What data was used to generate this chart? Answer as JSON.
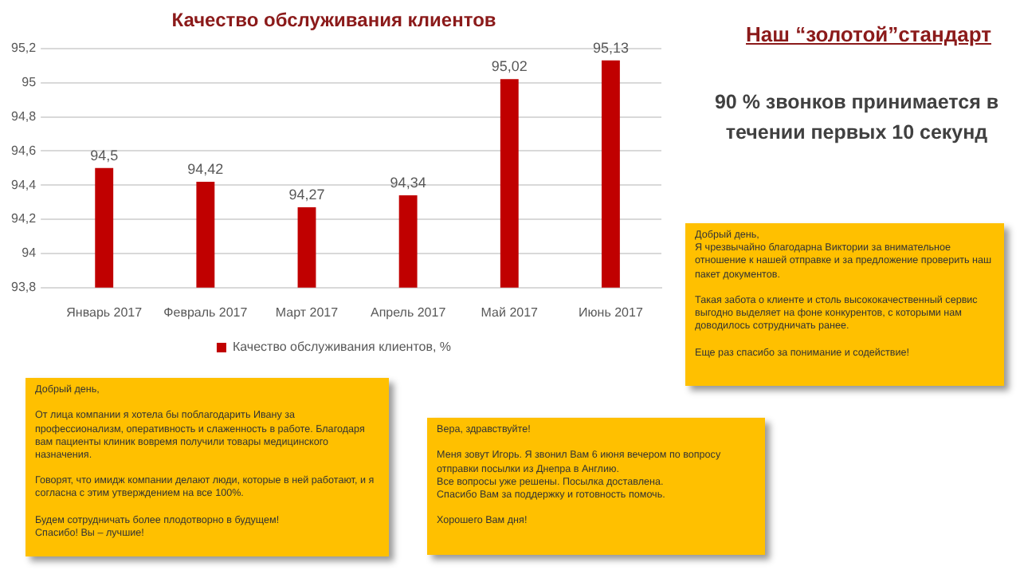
{
  "chart_data": [
    {
      "type": "bar",
      "title": "Качество обслуживания клиентов",
      "categories": [
        "Январь 2017",
        "Февраль 2017",
        "Март 2017",
        "Апрель 2017",
        "Май 2017",
        "Июнь 2017"
      ],
      "series": [
        {
          "name": "Качество обслуживания клиентов, %",
          "color": "#c00000",
          "values": [
            94.5,
            94.42,
            94.27,
            94.34,
            95.02,
            95.13
          ],
          "value_labels": [
            "94,5",
            "94,42",
            "94,27",
            "94,34",
            "95,02",
            "95,13"
          ]
        }
      ],
      "ylim": [
        93.8,
        95.2
      ],
      "yticks": [
        {
          "value": 93.8,
          "label": "93,8"
        },
        94,
        {
          "value": 94.2,
          "label": "94,2"
        },
        {
          "value": 94.4,
          "label": "94,4"
        },
        {
          "value": 94.6,
          "label": "94,6"
        },
        {
          "value": 94.8,
          "label": "94,8"
        },
        95,
        {
          "value": 95.2,
          "label": "95,2"
        }
      ],
      "grid": "y",
      "legend": "bottom"
    },
    {
      "type": "other",
      "title": "Наш “золотой”стандарт",
      "annotations": [
        "90 % звонков принимается в течении первых 10 секунд",
        "Добрый день,\nЯ чрезвычайно благодарна Виктории за внимательное отношение к нашей отправке и за предложение проверить наш пакет документов.\n\nТакая забота о клиенте и столь высококачественный сервис выгодно выделяет на фоне конкурентов, с которыми нам доводилось сотрудничать ранее.\n\nЕще раз спасибо за понимание и содействие!",
        "Добрый день,\n\nОт лица компании я хотела бы поблагодарить Ивану за профессионализм, оперативность и слаженность в работе. Благодаря вам пациенты клиник вовремя получили товары медицинского назначения.\n\nГоворят, что имидж компании делают люди, которые в ней работают, и я согласна с этим утверждением на все 100%.\n\nБудем сотрудничать более плодотворно в будущем!\nСпасибо! Вы – лучшие!",
        "Вера, здравствуйте!\n\nМеня зовут Игорь. Я звонил Вам 6 июня вечером по вопросу отправки посылки из Днепра в Англию.\nВсе вопросы уже решены. Посылка доставлена.\nСпасибо Вам за поддержку и готовность помочь.\n\nХорошего Вам дня!"
      ]
    }
  ]
}
